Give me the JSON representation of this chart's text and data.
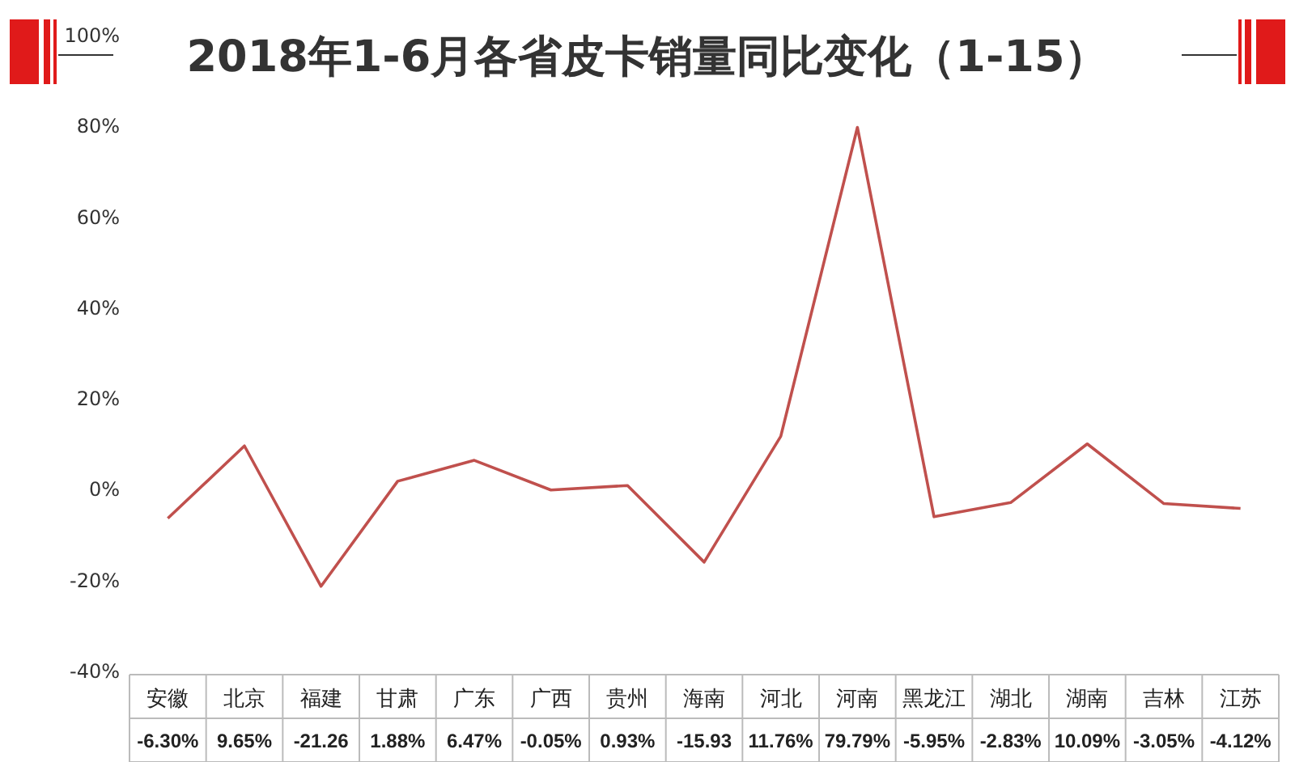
{
  "chart_data": {
    "type": "line",
    "title": "2018年1-6月各省皮卡销量同比变化（1-15）",
    "categories": [
      "安徽",
      "北京",
      "福建",
      "甘肃",
      "广东",
      "广西",
      "贵州",
      "海南",
      "河北",
      "河南",
      "黑龙江",
      "湖北",
      "湖南",
      "吉林",
      "江苏"
    ],
    "series": [
      {
        "color": "#c0504d",
        "values": [
          -6.3,
          9.65,
          -21.26,
          1.88,
          6.47,
          -0.05,
          0.93,
          -15.93,
          11.76,
          79.79,
          -5.95,
          -2.83,
          10.09,
          -3.05,
          -4.12
        ],
        "value_labels": [
          "-6.30%",
          "9.65%",
          "-21.26",
          "1.88%",
          "6.47%",
          "-0.05%",
          "0.93%",
          "-15.93",
          "11.76%",
          "79.79%",
          "-5.95%",
          "-2.83%",
          "10.09%",
          "-3.05%",
          "-4.12%"
        ]
      }
    ],
    "ylim": [
      -40,
      100
    ],
    "yticks": [
      {
        "value": -40,
        "label": "-40%"
      },
      {
        "value": -20,
        "label": "-20%"
      },
      {
        "value": 0,
        "label": "0%"
      },
      {
        "value": 20,
        "label": "20%"
      },
      {
        "value": 40,
        "label": "40%"
      },
      {
        "value": 60,
        "label": "60%"
      },
      {
        "value": 80,
        "label": "80%"
      },
      {
        "value": 100,
        "label": "100%"
      }
    ],
    "marker": "none",
    "line_style": "solid",
    "grid": false
  }
}
